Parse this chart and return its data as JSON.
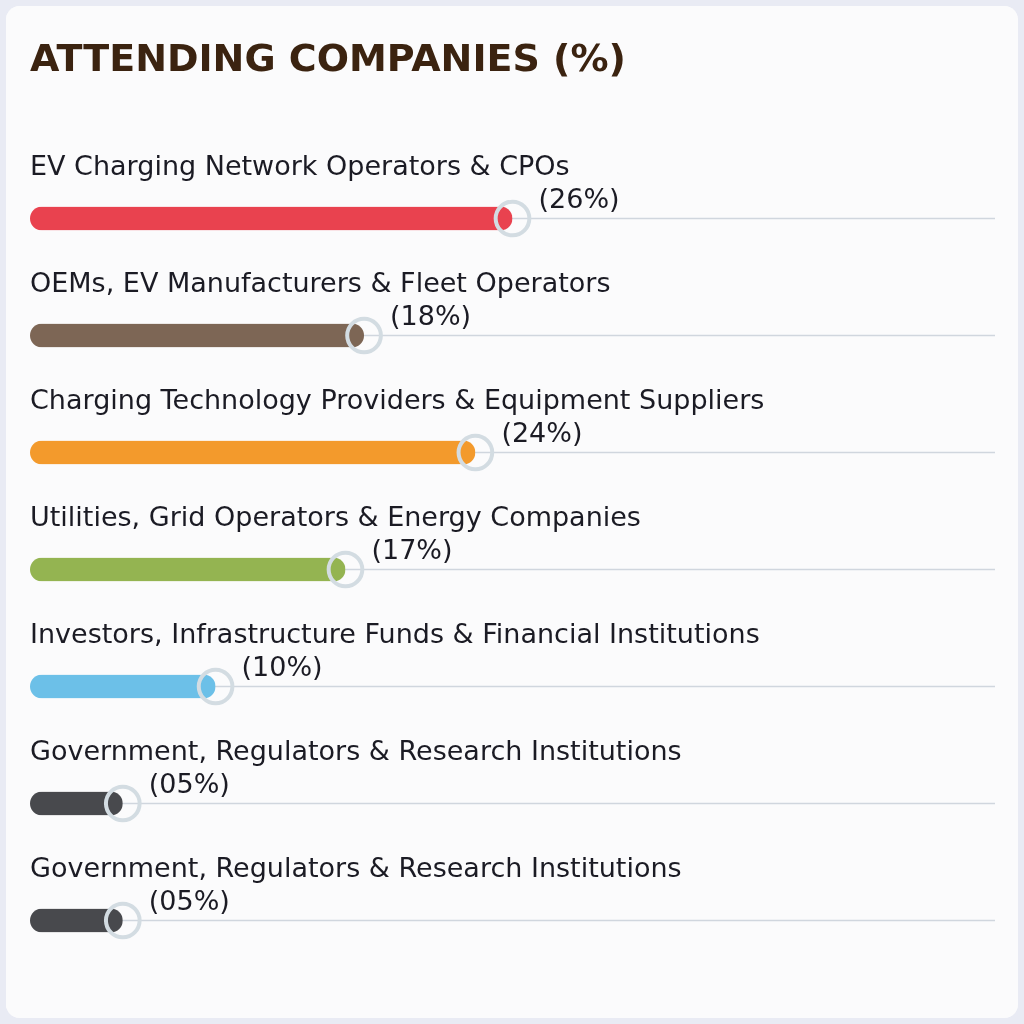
{
  "chart_data": {
    "type": "bar",
    "orientation": "horizontal",
    "title": "ATTENDING COMPANIES (%)",
    "categories": [
      "EV Charging Network Operators & CPOs",
      "OEMs, EV Manufacturers & Fleet Operators",
      "Charging Technology Providers & Equipment Suppliers",
      "Utilities, Grid Operators & Energy Companies",
      "Investors, Infrastructure Funds & Financial Institutions",
      "Government, Regulators & Research Institutions",
      "Government, Regulators & Research Institutions"
    ],
    "values": [
      26,
      18,
      24,
      17,
      10,
      5,
      5
    ],
    "colors": [
      "#e9424f",
      "#7d6655",
      "#f39a2c",
      "#94b451",
      "#6cc0e8",
      "#48494d",
      "#48494d"
    ],
    "value_labels": [
      "(26%)",
      "(18%)",
      "(24%)",
      "(17%)",
      "(10%)",
      "(05%)",
      "(05%)"
    ]
  }
}
